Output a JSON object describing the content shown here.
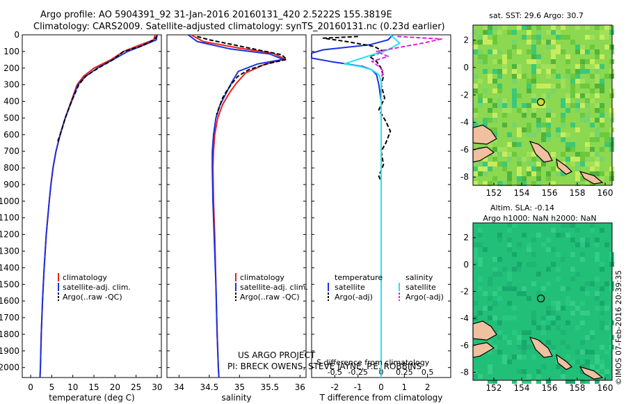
{
  "header": {
    "line1": "Argo profile: AO 5904391_92 31-Jan-2016 20160131_420 2.5222S 155.3819E",
    "line2": "Climatology: CARS2009. Satellite-adjusted climatology: synTS_20160131.nc (0.23d earlier)"
  },
  "colors": {
    "climatology": "#e8211a",
    "satellite": "#1a2fe0",
    "argo": "#000000",
    "satellite_salinity": "#22e4f0",
    "argo_salinity": "#e020e0",
    "land": "#f0c0a0"
  },
  "chart_data": [
    {
      "id": "temperature",
      "type": "line",
      "xlabel": "temperature (deg C)",
      "ylabel": "",
      "xlim": [
        -2,
        31
      ],
      "ylim": [
        2060,
        0
      ],
      "xticks": [
        0,
        5,
        10,
        15,
        20,
        25,
        30
      ],
      "yticks": [
        0,
        100,
        200,
        300,
        400,
        500,
        600,
        700,
        800,
        900,
        1000,
        1100,
        1200,
        1300,
        1400,
        1500,
        1600,
        1700,
        1800,
        1900,
        2000
      ],
      "legend": [
        "climatology",
        "satellite-adj. clim.",
        "Argo(..raw -QC)"
      ],
      "series": [
        {
          "name": "climatology",
          "color_key": "climatology",
          "dash": false,
          "points": [
            [
              29.5,
              0
            ],
            [
              29.2,
              30
            ],
            [
              26,
              60
            ],
            [
              22,
              100
            ],
            [
              19,
              150
            ],
            [
              15,
              200
            ],
            [
              12.5,
              250
            ],
            [
              11,
              300
            ],
            [
              9.6,
              400
            ],
            [
              8.2,
              500
            ],
            [
              7,
              600
            ],
            [
              6,
              700
            ],
            [
              5.3,
              800
            ],
            [
              4.8,
              900
            ],
            [
              4.4,
              1000
            ],
            [
              3.7,
              1200
            ],
            [
              3.2,
              1400
            ],
            [
              2.8,
              1600
            ],
            [
              2.5,
              1800
            ],
            [
              2.3,
              2000
            ],
            [
              2.2,
              2060
            ]
          ]
        },
        {
          "name": "satellite-adj. clim.",
          "color_key": "satellite",
          "dash": false,
          "points": [
            [
              30,
              0
            ],
            [
              29.8,
              30
            ],
            [
              27,
              60
            ],
            [
              23,
              100
            ],
            [
              19.5,
              150
            ],
            [
              15.8,
              200
            ],
            [
              13,
              250
            ],
            [
              11.2,
              300
            ],
            [
              9.7,
              400
            ],
            [
              8.2,
              500
            ],
            [
              7,
              600
            ],
            [
              6,
              700
            ],
            [
              5.3,
              800
            ],
            [
              4.8,
              900
            ],
            [
              4.4,
              1000
            ],
            [
              3.7,
              1200
            ],
            [
              3.2,
              1400
            ],
            [
              2.8,
              1600
            ],
            [
              2.5,
              1800
            ],
            [
              2.3,
              2000
            ],
            [
              2.2,
              2060
            ]
          ]
        },
        {
          "name": "Argo(..raw -QC)",
          "color_key": "argo",
          "dash": true,
          "points": [
            [
              30,
              5
            ],
            [
              29.6,
              20
            ],
            [
              28.5,
              40
            ],
            [
              26,
              70
            ],
            [
              22,
              100
            ],
            [
              19.5,
              150
            ],
            [
              16,
              200
            ],
            [
              13,
              250
            ],
            [
              11.4,
              300
            ],
            [
              9.7,
              400
            ],
            [
              8.2,
              500
            ],
            [
              7,
              600
            ],
            [
              6.3,
              650
            ]
          ]
        }
      ]
    },
    {
      "id": "salinity",
      "type": "line",
      "xlabel": "salinity",
      "ylabel": "",
      "xlim": [
        33.8,
        36.1
      ],
      "ylim": [
        2060,
        0
      ],
      "xticks": [
        34,
        34.5,
        35,
        35.5,
        36
      ],
      "legend": [
        "climatology",
        "satellite-adj. clim.",
        "Argo(..raw -QC)"
      ],
      "series": [
        {
          "name": "climatology",
          "color_key": "climatology",
          "dash": false,
          "points": [
            [
              34.2,
              0
            ],
            [
              34.4,
              40
            ],
            [
              35.0,
              80
            ],
            [
              35.55,
              110
            ],
            [
              35.75,
              145
            ],
            [
              35.4,
              180
            ],
            [
              35.1,
              230
            ],
            [
              34.95,
              290
            ],
            [
              34.83,
              350
            ],
            [
              34.72,
              420
            ],
            [
              34.64,
              500
            ],
            [
              34.59,
              600
            ],
            [
              34.57,
              700
            ],
            [
              34.56,
              800
            ],
            [
              34.57,
              1000
            ],
            [
              34.59,
              1200
            ],
            [
              34.61,
              1500
            ],
            [
              34.63,
              1800
            ],
            [
              34.65,
              2000
            ],
            [
              34.66,
              2060
            ]
          ]
        },
        {
          "name": "satellite-adj. clim.",
          "color_key": "satellite",
          "dash": false,
          "points": [
            [
              34.15,
              0
            ],
            [
              34.3,
              40
            ],
            [
              34.85,
              85
            ],
            [
              35.5,
              115
            ],
            [
              35.72,
              148
            ],
            [
              35.3,
              175
            ],
            [
              34.98,
              220
            ],
            [
              34.88,
              280
            ],
            [
              34.78,
              350
            ],
            [
              34.68,
              420
            ],
            [
              34.61,
              500
            ],
            [
              34.57,
              600
            ],
            [
              34.55,
              700
            ],
            [
              34.55,
              800
            ],
            [
              34.56,
              1000
            ],
            [
              34.58,
              1200
            ],
            [
              34.61,
              1500
            ],
            [
              34.63,
              1800
            ],
            [
              34.65,
              2000
            ],
            [
              34.66,
              2060
            ]
          ]
        },
        {
          "name": "Argo(..raw -QC)",
          "color_key": "argo",
          "dash": true,
          "points": [
            [
              34.3,
              10
            ],
            [
              34.5,
              30
            ],
            [
              34.9,
              60
            ],
            [
              35.3,
              90
            ],
            [
              35.7,
              120
            ],
            [
              35.78,
              148
            ],
            [
              35.45,
              175
            ],
            [
              35.15,
              210
            ],
            [
              34.97,
              250
            ],
            [
              34.88,
              290
            ],
            [
              34.8,
              330
            ],
            [
              34.72,
              380
            ],
            [
              34.68,
              420
            ],
            [
              34.62,
              480
            ]
          ]
        }
      ]
    },
    {
      "id": "difference",
      "type": "line",
      "xlabel": "T difference from climatology",
      "secondary_xlabel": "S difference from climatology",
      "xlim": [
        -3,
        3
      ],
      "ylim": [
        2060,
        0
      ],
      "xticks": [
        -2,
        -1,
        0,
        1,
        2
      ],
      "secondary_xticks": [
        "-0.5",
        "-0.25",
        "0",
        "0.25",
        "0.5"
      ],
      "legend_titles": [
        "temperature",
        "salinity"
      ],
      "legend": [
        "satellite",
        "Argo(-adj)",
        "satellite",
        "Argo(-adj)"
      ],
      "series": [
        {
          "name": "satellite",
          "color_key": "satellite",
          "dash": false,
          "points": [
            [
              0.5,
              0
            ],
            [
              0.3,
              30
            ],
            [
              -0.5,
              60
            ],
            [
              -2.5,
              90
            ],
            [
              -3,
              110
            ],
            [
              -3,
              140
            ],
            [
              -2.2,
              160
            ],
            [
              -1.5,
              175
            ],
            [
              -0.8,
              190
            ],
            [
              -0.4,
              210
            ],
            [
              -0.2,
              240
            ],
            [
              -0.1,
              300
            ],
            [
              0,
              400
            ],
            [
              0,
              600
            ],
            [
              0,
              1000
            ],
            [
              0,
              2060
            ]
          ]
        },
        {
          "name": "Argo(-adj)",
          "color_key": "argo",
          "dash": true,
          "points": [
            [
              -1,
              10
            ],
            [
              -2.5,
              20
            ],
            [
              -1.5,
              40
            ],
            [
              -0.3,
              70
            ],
            [
              0.1,
              100
            ],
            [
              -0.5,
              130
            ],
            [
              -0.2,
              160
            ],
            [
              0,
              200
            ],
            [
              0.1,
              250
            ],
            [
              0,
              300
            ],
            [
              0.15,
              380
            ],
            [
              -0.1,
              450
            ],
            [
              0.2,
              520
            ],
            [
              0.4,
              580
            ],
            [
              0.2,
              650
            ],
            [
              0,
              700
            ],
            [
              0.1,
              780
            ],
            [
              -0.1,
              850
            ],
            [
              0,
              880
            ],
            [
              0,
              920
            ]
          ]
        },
        {
          "name": "satellite",
          "color_key": "satellite_salinity",
          "dash": false,
          "points": [
            [
              0.4,
              0
            ],
            [
              0.8,
              50
            ],
            [
              0.3,
              90
            ],
            [
              -0.6,
              130
            ],
            [
              -1.6,
              175
            ],
            [
              -0.9,
              190
            ],
            [
              -0.4,
              210
            ],
            [
              -0.1,
              240
            ],
            [
              0,
              280
            ],
            [
              0,
              400
            ],
            [
              0,
              1000
            ],
            [
              0,
              2060
            ]
          ]
        },
        {
          "name": "Argo(-adj)",
          "color_key": "argo_salinity",
          "dash": true,
          "points": [
            [
              0.7,
              10
            ],
            [
              2.6,
              25
            ],
            [
              1.8,
              50
            ],
            [
              0.6,
              80
            ],
            [
              -0.2,
              100
            ],
            [
              0.3,
              130
            ],
            [
              -0.4,
              160
            ],
            [
              -0.1,
              190
            ],
            [
              0.1,
              220
            ],
            [
              0,
              260
            ]
          ]
        }
      ]
    }
  ],
  "annotations": {
    "project": "US ARGO PROJECT",
    "pi": "PI: BRECK OWENS, STEVE JAYNE, P.E. ROBBINS",
    "imos": "©IMOS 07-Feb-2016 20:39:35"
  },
  "maps": [
    {
      "id": "sst-map",
      "title": "sat. SST: 29.6 Argo: 30.7",
      "subtitle": "",
      "xticks": [
        "152",
        "154",
        "156",
        "158",
        "160"
      ],
      "yticks": [
        "2",
        "0",
        "-2",
        "-4",
        "-6",
        "-8"
      ],
      "base_color": "#8cd850",
      "marker_lon": 155.38,
      "marker_lat": -2.52
    },
    {
      "id": "sla-map",
      "title": "Altim. SLA: -0.14",
      "subtitle": "Argo h1000: NaN h2000: NaN",
      "xticks": [
        "152",
        "154",
        "156",
        "158",
        "160"
      ],
      "yticks": [
        "2",
        "0",
        "-2",
        "-4",
        "-6",
        "-8"
      ],
      "base_color": "#22bf78",
      "marker_lon": 155.38,
      "marker_lat": -2.52
    }
  ]
}
